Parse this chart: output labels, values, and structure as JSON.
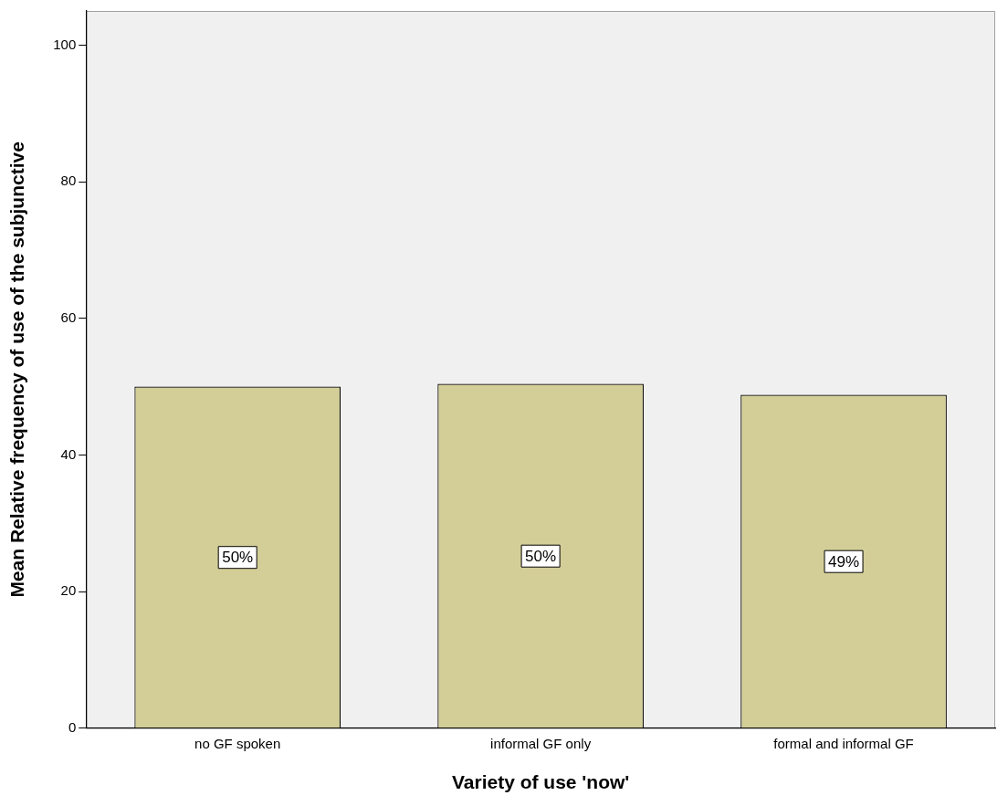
{
  "chart_data": {
    "type": "bar",
    "xlabel": "Variety of use 'now'",
    "ylabel": "Mean Relative frequency of use of the subjunctive",
    "categories": [
      "no GF spoken",
      "informal GF only",
      "formal and informal GF"
    ],
    "values": [
      50,
      50.4,
      48.8
    ],
    "color": "#d3ce97",
    "value_labels": [
      "50%",
      "50%",
      "49%"
    ],
    "ylim": [
      0,
      105
    ],
    "yticks": [
      0,
      20,
      40,
      60,
      80,
      100
    ],
    "grid": false,
    "legend": false
  }
}
